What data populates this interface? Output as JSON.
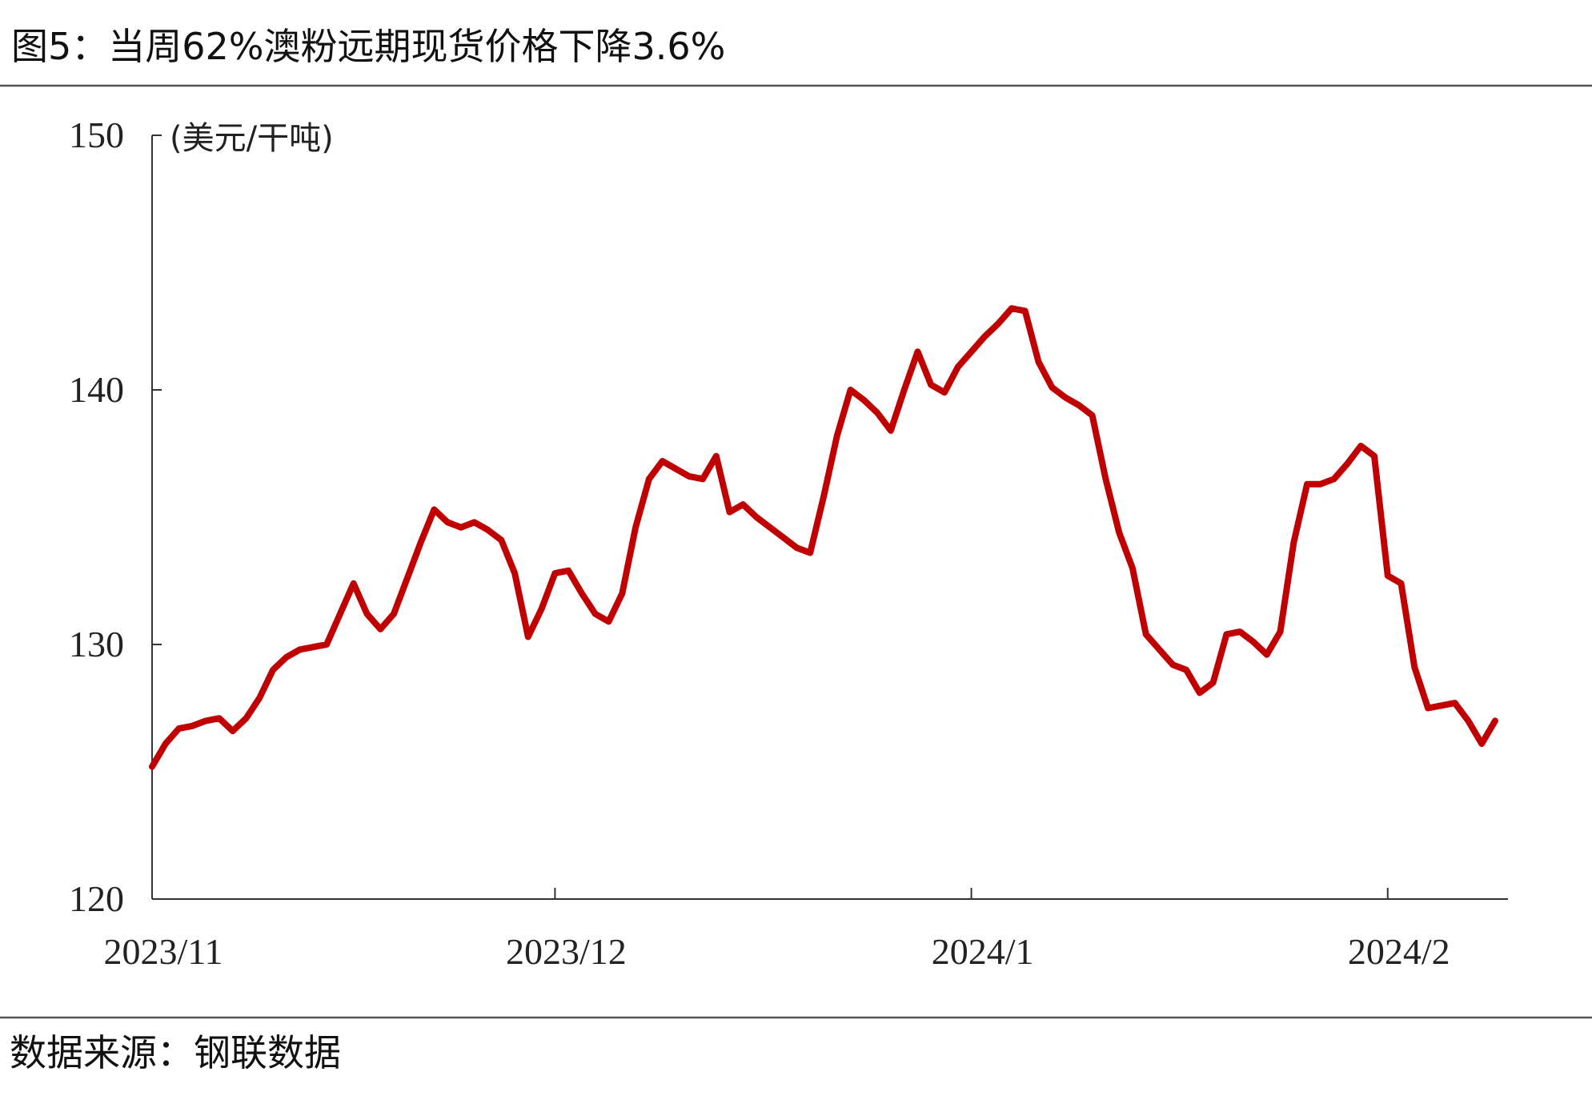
{
  "chart_data": {
    "type": "line",
    "title": "图5：当周62%澳粉远期现货价格下降3.6%",
    "y_label": "(美元/干吨)",
    "source": "数据来源：钢联数据",
    "categories": [
      "2023/11",
      null,
      null,
      null,
      null,
      null,
      null,
      null,
      null,
      null,
      null,
      null,
      null,
      null,
      null,
      null,
      null,
      null,
      null,
      null,
      null,
      null,
      null,
      null,
      null,
      null,
      null,
      null,
      null,
      null,
      "2023/12",
      null,
      null,
      null,
      null,
      null,
      null,
      null,
      null,
      null,
      null,
      null,
      null,
      null,
      null,
      null,
      null,
      null,
      null,
      null,
      null,
      null,
      null,
      null,
      null,
      null,
      null,
      null,
      null,
      null,
      null,
      "2024/1",
      null,
      null,
      null,
      null,
      null,
      null,
      null,
      null,
      null,
      null,
      null,
      null,
      null,
      null,
      null,
      null,
      null,
      null,
      null,
      null,
      null,
      null,
      null,
      null,
      null,
      null,
      null,
      null,
      null,
      null,
      "2024/2",
      null,
      null,
      null,
      null,
      null,
      null,
      null,
      null
    ],
    "series": [
      {
        "name": "62%澳粉远期现货价格",
        "color": "#c00000",
        "values": [
          125.2,
          126.1,
          126.7,
          126.8,
          127.0,
          127.1,
          126.6,
          127.1,
          127.9,
          129.0,
          129.5,
          129.8,
          129.9,
          130.0,
          131.2,
          132.4,
          131.2,
          130.6,
          131.2,
          132.6,
          134.0,
          135.3,
          134.8,
          134.6,
          134.8,
          134.5,
          134.1,
          132.8,
          130.3,
          131.4,
          132.8,
          132.9,
          132.0,
          131.2,
          130.9,
          132.0,
          134.6,
          136.5,
          137.2,
          136.9,
          136.6,
          136.5,
          137.4,
          135.2,
          135.5,
          135.0,
          134.6,
          134.2,
          133.8,
          133.6,
          135.8,
          138.2,
          140.0,
          139.6,
          139.1,
          138.4,
          140.0,
          141.5,
          140.2,
          139.9,
          140.9,
          141.5,
          142.1,
          142.6,
          143.2,
          143.1,
          141.1,
          140.1,
          139.7,
          139.4,
          139.0,
          136.5,
          134.4,
          133.0,
          130.4,
          129.8,
          129.2,
          129.0,
          128.1,
          128.5,
          130.4,
          130.5,
          130.1,
          129.6,
          130.5,
          134.0,
          136.3,
          136.3,
          136.5,
          137.1,
          137.8,
          137.4,
          132.7,
          132.4,
          129.1,
          127.5,
          127.6,
          127.7,
          127.0,
          126.1,
          127.0
        ]
      }
    ],
    "ylim": [
      120,
      150
    ],
    "yticks": [
      120,
      130,
      140,
      150
    ],
    "grid": false
  }
}
